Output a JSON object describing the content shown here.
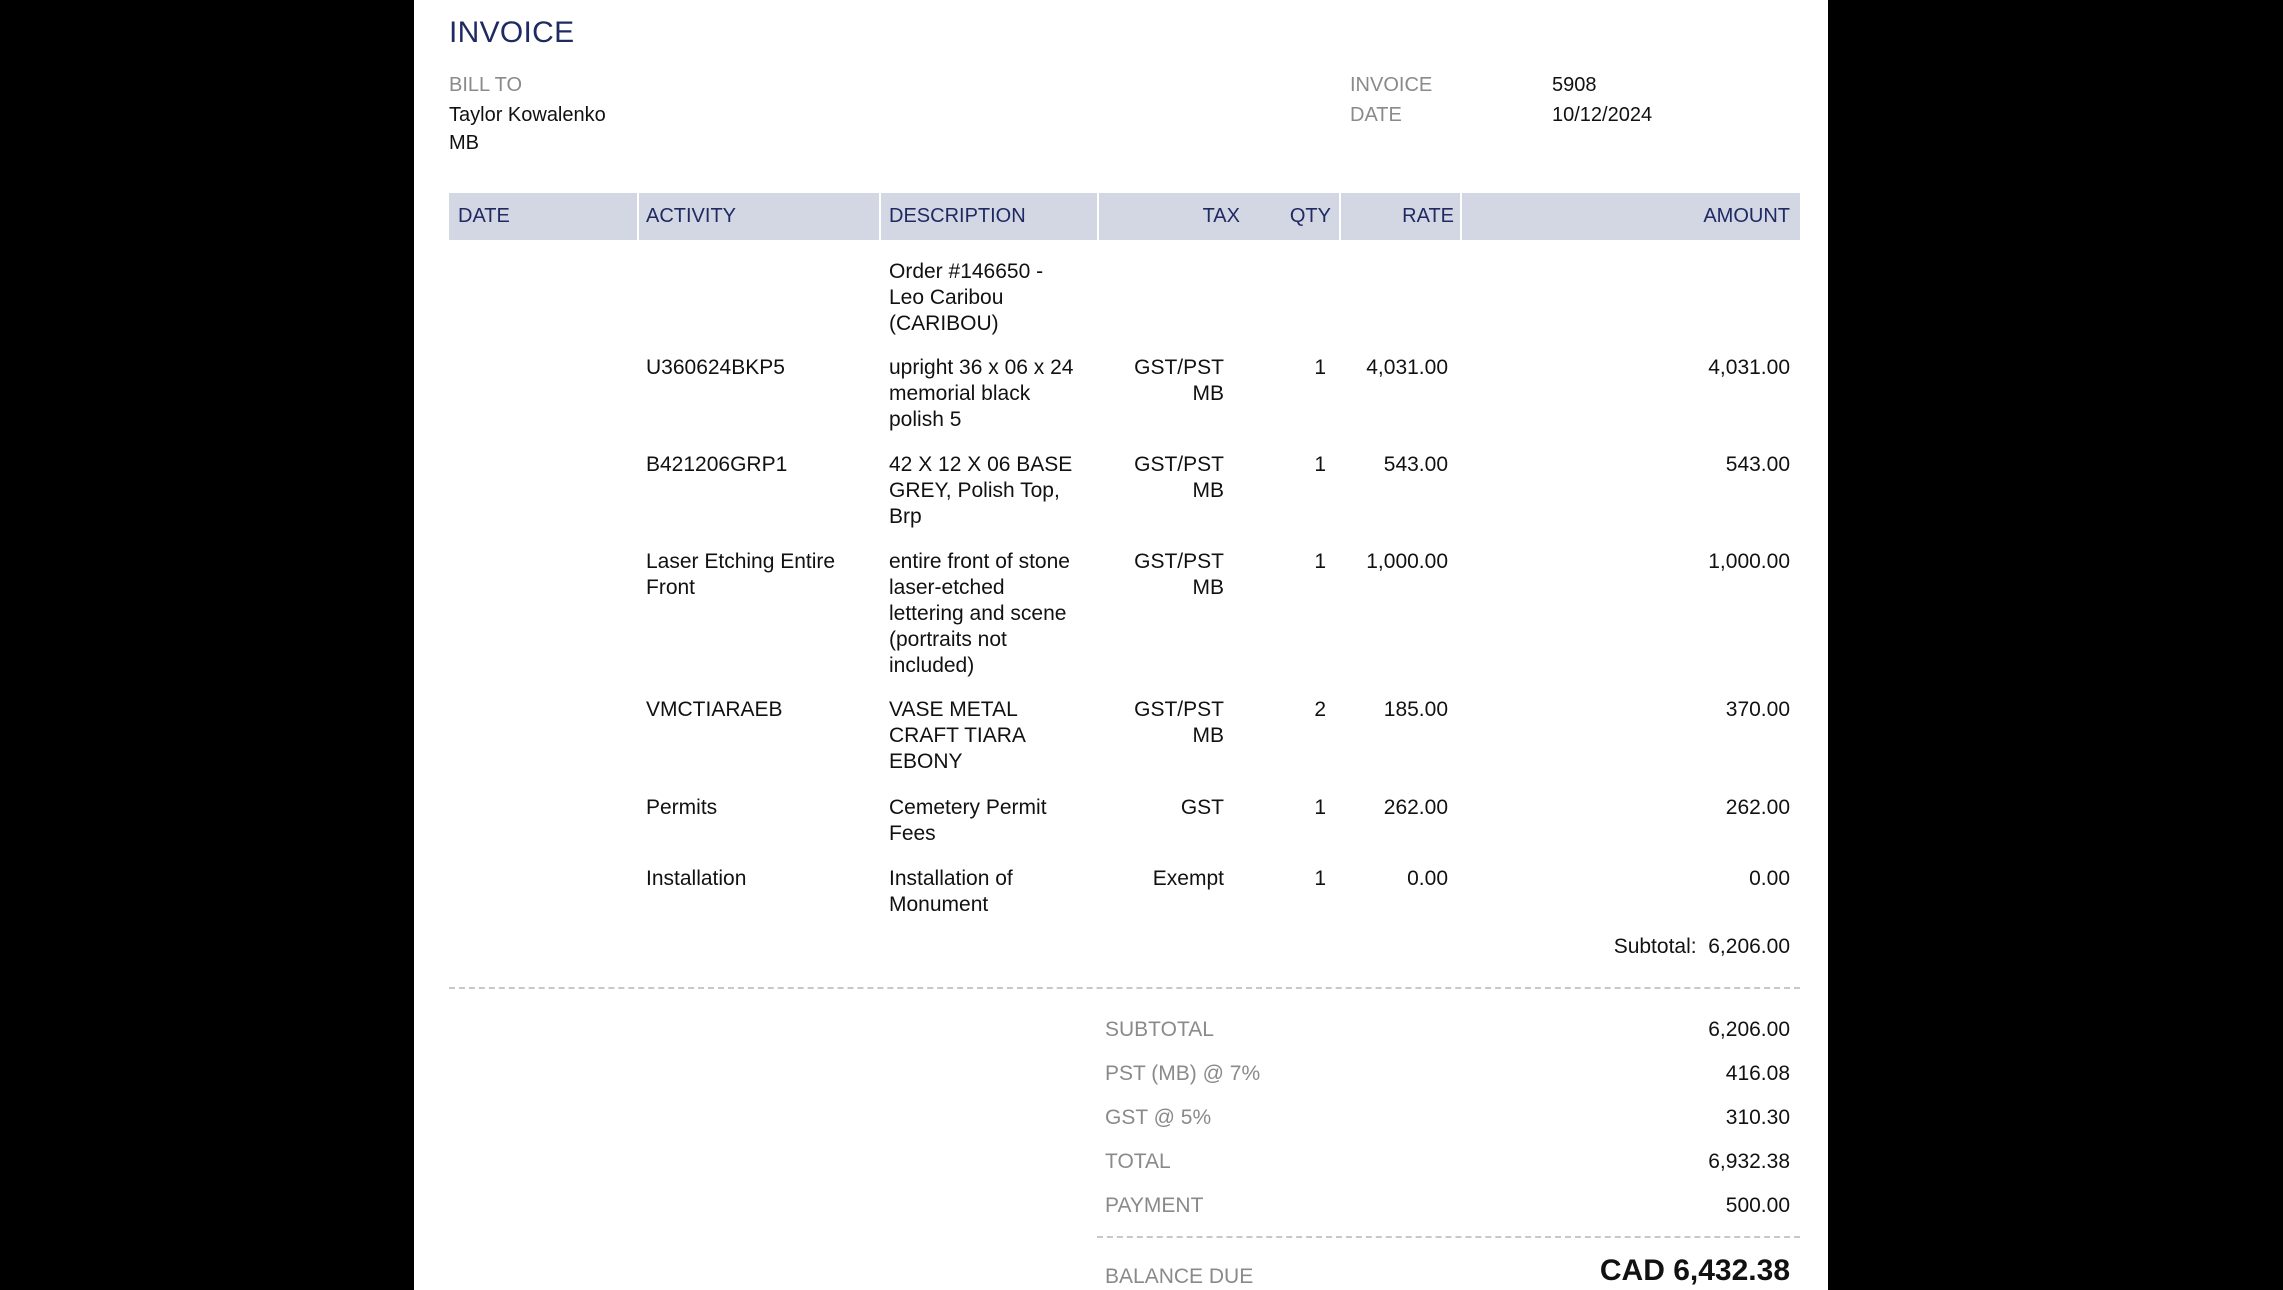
{
  "title": "INVOICE",
  "bill_to": {
    "label": "BILL TO",
    "name": "Taylor Kowalenko",
    "region": "MB"
  },
  "meta": {
    "invoice_label": "INVOICE",
    "invoice_number": "5908",
    "date_label": "DATE",
    "date_value": "10/12/2024"
  },
  "table": {
    "headers": {
      "date": "DATE",
      "activity": "ACTIVITY",
      "description": "DESCRIPTION",
      "tax": "TAX",
      "qty": "QTY",
      "rate": "RATE",
      "amount": "AMOUNT"
    },
    "order_note": [
      "Order #146650 -",
      "Leo Caribou",
      "(CARIBOU)"
    ],
    "rows": [
      {
        "activity": [
          "U360624BKP5"
        ],
        "description": [
          "upright 36 x 06 x 24",
          "memorial black",
          "polish 5"
        ],
        "tax": [
          "GST/PST",
          "MB"
        ],
        "qty": "1",
        "rate": "4,031.00",
        "amount": "4,031.00"
      },
      {
        "activity": [
          "B421206GRP1"
        ],
        "description": [
          "42 X 12 X 06 BASE",
          "GREY, Polish Top,",
          "Brp"
        ],
        "tax": [
          "GST/PST",
          "MB"
        ],
        "qty": "1",
        "rate": "543.00",
        "amount": "543.00"
      },
      {
        "activity": [
          "Laser Etching Entire",
          "Front"
        ],
        "description": [
          "entire front of stone",
          "laser-etched",
          "lettering and scene",
          "(portraits not",
          "included)"
        ],
        "tax": [
          "GST/PST",
          "MB"
        ],
        "qty": "1",
        "rate": "1,000.00",
        "amount": "1,000.00"
      },
      {
        "activity": [
          "VMCTIARAEB"
        ],
        "description": [
          "VASE METAL",
          "CRAFT TIARA",
          "EBONY"
        ],
        "tax": [
          "GST/PST",
          "MB"
        ],
        "qty": "2",
        "rate": "185.00",
        "amount": "370.00"
      },
      {
        "activity": [
          "Permits"
        ],
        "description": [
          "Cemetery Permit",
          "Fees"
        ],
        "tax": [
          "GST"
        ],
        "qty": "1",
        "rate": "262.00",
        "amount": "262.00"
      },
      {
        "activity": [
          "Installation"
        ],
        "description": [
          "Installation of",
          "Monument"
        ],
        "tax": [
          "Exempt"
        ],
        "qty": "1",
        "rate": "0.00",
        "amount": "0.00"
      }
    ],
    "subtotal_text": "Subtotal:  6,206.00"
  },
  "summary": {
    "subtotal_label": "SUBTOTAL",
    "subtotal_value": "6,206.00",
    "pst_label": "PST (MB) @ 7%",
    "pst_value": "416.08",
    "gst_label": "GST @ 5%",
    "gst_value": "310.30",
    "total_label": "TOTAL",
    "total_value": "6,932.38",
    "payment_label": "PAYMENT",
    "payment_value": "500.00",
    "balance_label": "BALANCE DUE",
    "balance_value": "CAD 6,432.38"
  }
}
